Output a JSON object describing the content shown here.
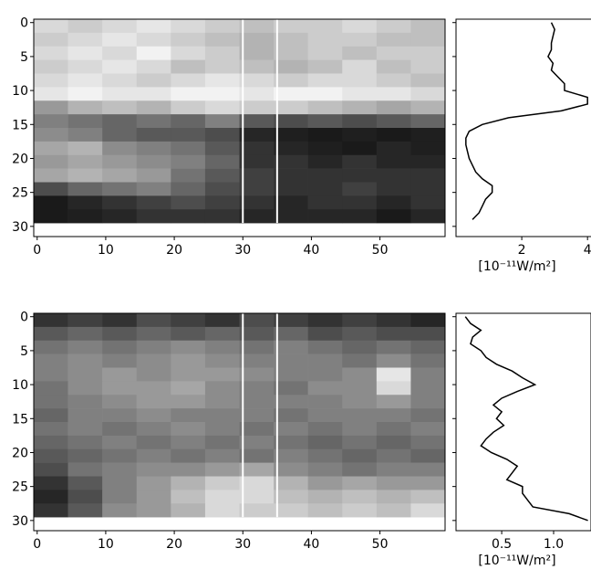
{
  "chart_data": [
    {
      "type": "heatmap",
      "cmap": "gray",
      "xlim": [
        -0.5,
        59.5
      ],
      "ylim": [
        -0.5,
        31.5
      ],
      "y_inverted": true,
      "xticks": [
        0,
        10,
        20,
        30,
        40,
        50
      ],
      "yticks": [
        0,
        5,
        10,
        15,
        20,
        25,
        30
      ],
      "vlines": [
        30,
        35
      ],
      "xbins": [
        -0.5,
        4.5,
        9.5,
        14.5,
        19.5,
        24.5,
        29.5,
        34.5,
        39.5,
        44.5,
        49.5,
        54.5,
        59.5
      ],
      "ybins": [
        -0.5,
        1.5,
        3.5,
        5.5,
        7.5,
        9.5,
        11.5,
        13.5,
        15.5,
        17.5,
        19.5,
        21.5,
        23.5,
        25.5,
        27.5,
        29.5
      ],
      "z": [
        [
          0.85,
          0.8,
          0.85,
          0.9,
          0.85,
          0.8,
          0.75,
          0.8,
          0.8,
          0.85,
          0.8,
          0.75
        ],
        [
          0.8,
          0.85,
          0.9,
          0.85,
          0.8,
          0.75,
          0.7,
          0.75,
          0.8,
          0.8,
          0.75,
          0.75
        ],
        [
          0.85,
          0.9,
          0.85,
          0.95,
          0.85,
          0.8,
          0.7,
          0.75,
          0.8,
          0.75,
          0.8,
          0.8
        ],
        [
          0.8,
          0.85,
          0.9,
          0.85,
          0.75,
          0.8,
          0.75,
          0.7,
          0.75,
          0.85,
          0.75,
          0.8
        ],
        [
          0.85,
          0.9,
          0.85,
          0.8,
          0.85,
          0.9,
          0.85,
          0.8,
          0.85,
          0.85,
          0.8,
          0.75
        ],
        [
          0.9,
          0.95,
          0.9,
          0.9,
          0.95,
          0.95,
          0.9,
          0.95,
          0.95,
          0.9,
          0.9,
          0.85
        ],
        [
          0.6,
          0.7,
          0.75,
          0.7,
          0.8,
          0.85,
          0.8,
          0.8,
          0.75,
          0.7,
          0.65,
          0.7
        ],
        [
          0.5,
          0.45,
          0.4,
          0.45,
          0.4,
          0.5,
          0.35,
          0.3,
          0.35,
          0.3,
          0.35,
          0.4
        ],
        [
          0.55,
          0.5,
          0.4,
          0.35,
          0.35,
          0.3,
          0.15,
          0.12,
          0.1,
          0.12,
          0.1,
          0.12
        ],
        [
          0.65,
          0.7,
          0.55,
          0.5,
          0.45,
          0.35,
          0.2,
          0.15,
          0.12,
          0.1,
          0.15,
          0.12
        ],
        [
          0.6,
          0.65,
          0.6,
          0.55,
          0.5,
          0.4,
          0.2,
          0.2,
          0.15,
          0.2,
          0.15,
          0.15
        ],
        [
          0.65,
          0.7,
          0.65,
          0.6,
          0.45,
          0.35,
          0.25,
          0.2,
          0.2,
          0.2,
          0.2,
          0.2
        ],
        [
          0.3,
          0.4,
          0.45,
          0.5,
          0.4,
          0.3,
          0.25,
          0.2,
          0.2,
          0.25,
          0.2,
          0.2
        ],
        [
          0.1,
          0.15,
          0.2,
          0.25,
          0.3,
          0.25,
          0.2,
          0.15,
          0.2,
          0.2,
          0.15,
          0.2
        ],
        [
          0.1,
          0.12,
          0.15,
          0.2,
          0.2,
          0.2,
          0.15,
          0.15,
          0.15,
          0.15,
          0.1,
          0.15
        ]
      ]
    },
    {
      "type": "profile",
      "color": "#000000",
      "xlim": [
        0,
        4.3
      ],
      "ylim": [
        -0.5,
        31.5
      ],
      "y_inverted": true,
      "xticks": [
        2,
        4
      ],
      "yticks": [
        0,
        5,
        10,
        15,
        20,
        25,
        30
      ],
      "xlabel": "[10⁻¹¹W/m²]",
      "y": [
        0,
        1,
        2,
        3,
        4,
        5,
        6,
        7,
        8,
        9,
        10,
        11,
        12,
        13,
        14,
        15,
        16,
        17,
        18,
        19,
        20,
        21,
        22,
        23,
        24,
        25,
        26,
        27,
        28,
        29
      ],
      "values": [
        2.9,
        3.0,
        2.95,
        2.9,
        2.9,
        2.8,
        2.95,
        2.9,
        3.1,
        3.3,
        3.3,
        4.0,
        4.0,
        3.2,
        1.6,
        0.8,
        0.4,
        0.3,
        0.3,
        0.35,
        0.4,
        0.5,
        0.6,
        0.8,
        1.1,
        1.1,
        0.9,
        0.8,
        0.7,
        0.5
      ]
    },
    {
      "type": "heatmap",
      "cmap": "gray",
      "xlim": [
        -0.5,
        59.5
      ],
      "ylim": [
        -0.5,
        31.5
      ],
      "y_inverted": true,
      "xticks": [
        0,
        10,
        20,
        30,
        40,
        50
      ],
      "yticks": [
        0,
        5,
        10,
        15,
        20,
        25,
        30
      ],
      "vlines": [
        30,
        35
      ],
      "xbins": [
        -0.5,
        4.5,
        9.5,
        14.5,
        19.5,
        24.5,
        29.5,
        34.5,
        39.5,
        44.5,
        49.5,
        54.5,
        59.5
      ],
      "ybins": [
        -0.5,
        1.5,
        3.5,
        5.5,
        7.5,
        9.5,
        11.5,
        13.5,
        15.5,
        17.5,
        19.5,
        21.5,
        23.5,
        25.5,
        27.5,
        29.5
      ],
      "z": [
        [
          0.2,
          0.25,
          0.2,
          0.3,
          0.25,
          0.2,
          0.3,
          0.25,
          0.2,
          0.25,
          0.2,
          0.15
        ],
        [
          0.35,
          0.4,
          0.35,
          0.4,
          0.35,
          0.4,
          0.35,
          0.4,
          0.3,
          0.35,
          0.3,
          0.3
        ],
        [
          0.45,
          0.5,
          0.45,
          0.5,
          0.55,
          0.5,
          0.45,
          0.5,
          0.45,
          0.4,
          0.45,
          0.4
        ],
        [
          0.5,
          0.55,
          0.5,
          0.55,
          0.6,
          0.55,
          0.5,
          0.5,
          0.5,
          0.45,
          0.55,
          0.45
        ],
        [
          0.5,
          0.55,
          0.6,
          0.55,
          0.6,
          0.6,
          0.55,
          0.5,
          0.5,
          0.55,
          0.9,
          0.5
        ],
        [
          0.45,
          0.55,
          0.6,
          0.6,
          0.65,
          0.55,
          0.5,
          0.45,
          0.55,
          0.55,
          0.85,
          0.5
        ],
        [
          0.45,
          0.5,
          0.55,
          0.6,
          0.6,
          0.55,
          0.5,
          0.5,
          0.5,
          0.55,
          0.6,
          0.5
        ],
        [
          0.4,
          0.5,
          0.5,
          0.55,
          0.5,
          0.5,
          0.5,
          0.45,
          0.5,
          0.5,
          0.5,
          0.45
        ],
        [
          0.45,
          0.5,
          0.45,
          0.5,
          0.55,
          0.5,
          0.45,
          0.5,
          0.45,
          0.5,
          0.45,
          0.5
        ],
        [
          0.4,
          0.45,
          0.5,
          0.45,
          0.5,
          0.45,
          0.5,
          0.45,
          0.4,
          0.45,
          0.4,
          0.45
        ],
        [
          0.35,
          0.4,
          0.45,
          0.5,
          0.45,
          0.5,
          0.45,
          0.5,
          0.45,
          0.4,
          0.45,
          0.4
        ],
        [
          0.3,
          0.45,
          0.5,
          0.55,
          0.55,
          0.6,
          0.65,
          0.55,
          0.5,
          0.45,
          0.5,
          0.5
        ],
        [
          0.2,
          0.35,
          0.5,
          0.6,
          0.7,
          0.8,
          0.85,
          0.7,
          0.6,
          0.65,
          0.6,
          0.6
        ],
        [
          0.15,
          0.3,
          0.5,
          0.6,
          0.75,
          0.85,
          0.85,
          0.75,
          0.7,
          0.75,
          0.7,
          0.75
        ],
        [
          0.2,
          0.35,
          0.55,
          0.6,
          0.7,
          0.85,
          0.8,
          0.8,
          0.75,
          0.8,
          0.75,
          0.85
        ]
      ]
    },
    {
      "type": "profile",
      "color": "#000000",
      "xlim": [
        0.06,
        1.36
      ],
      "ylim": [
        -0.5,
        31.5
      ],
      "y_inverted": true,
      "xticks": [
        {
          "value": 0.5,
          "label": "0.5"
        },
        {
          "value": 1.0,
          "label": "1.0"
        }
      ],
      "yticks": [
        0,
        5,
        10,
        15,
        20,
        25,
        30
      ],
      "xlabel": "[10⁻¹¹W/m²]",
      "y": [
        0,
        1,
        2,
        3,
        4,
        5,
        6,
        7,
        8,
        9,
        10,
        11,
        12,
        13,
        14,
        15,
        16,
        17,
        18,
        19,
        20,
        21,
        22,
        23,
        24,
        25,
        26,
        27,
        28,
        29,
        30
      ],
      "values": [
        0.15,
        0.2,
        0.3,
        0.22,
        0.2,
        0.3,
        0.35,
        0.45,
        0.6,
        0.7,
        0.82,
        0.65,
        0.5,
        0.42,
        0.5,
        0.45,
        0.52,
        0.42,
        0.35,
        0.3,
        0.4,
        0.55,
        0.65,
        0.6,
        0.55,
        0.7,
        0.7,
        0.75,
        0.8,
        1.15,
        1.33
      ]
    }
  ]
}
